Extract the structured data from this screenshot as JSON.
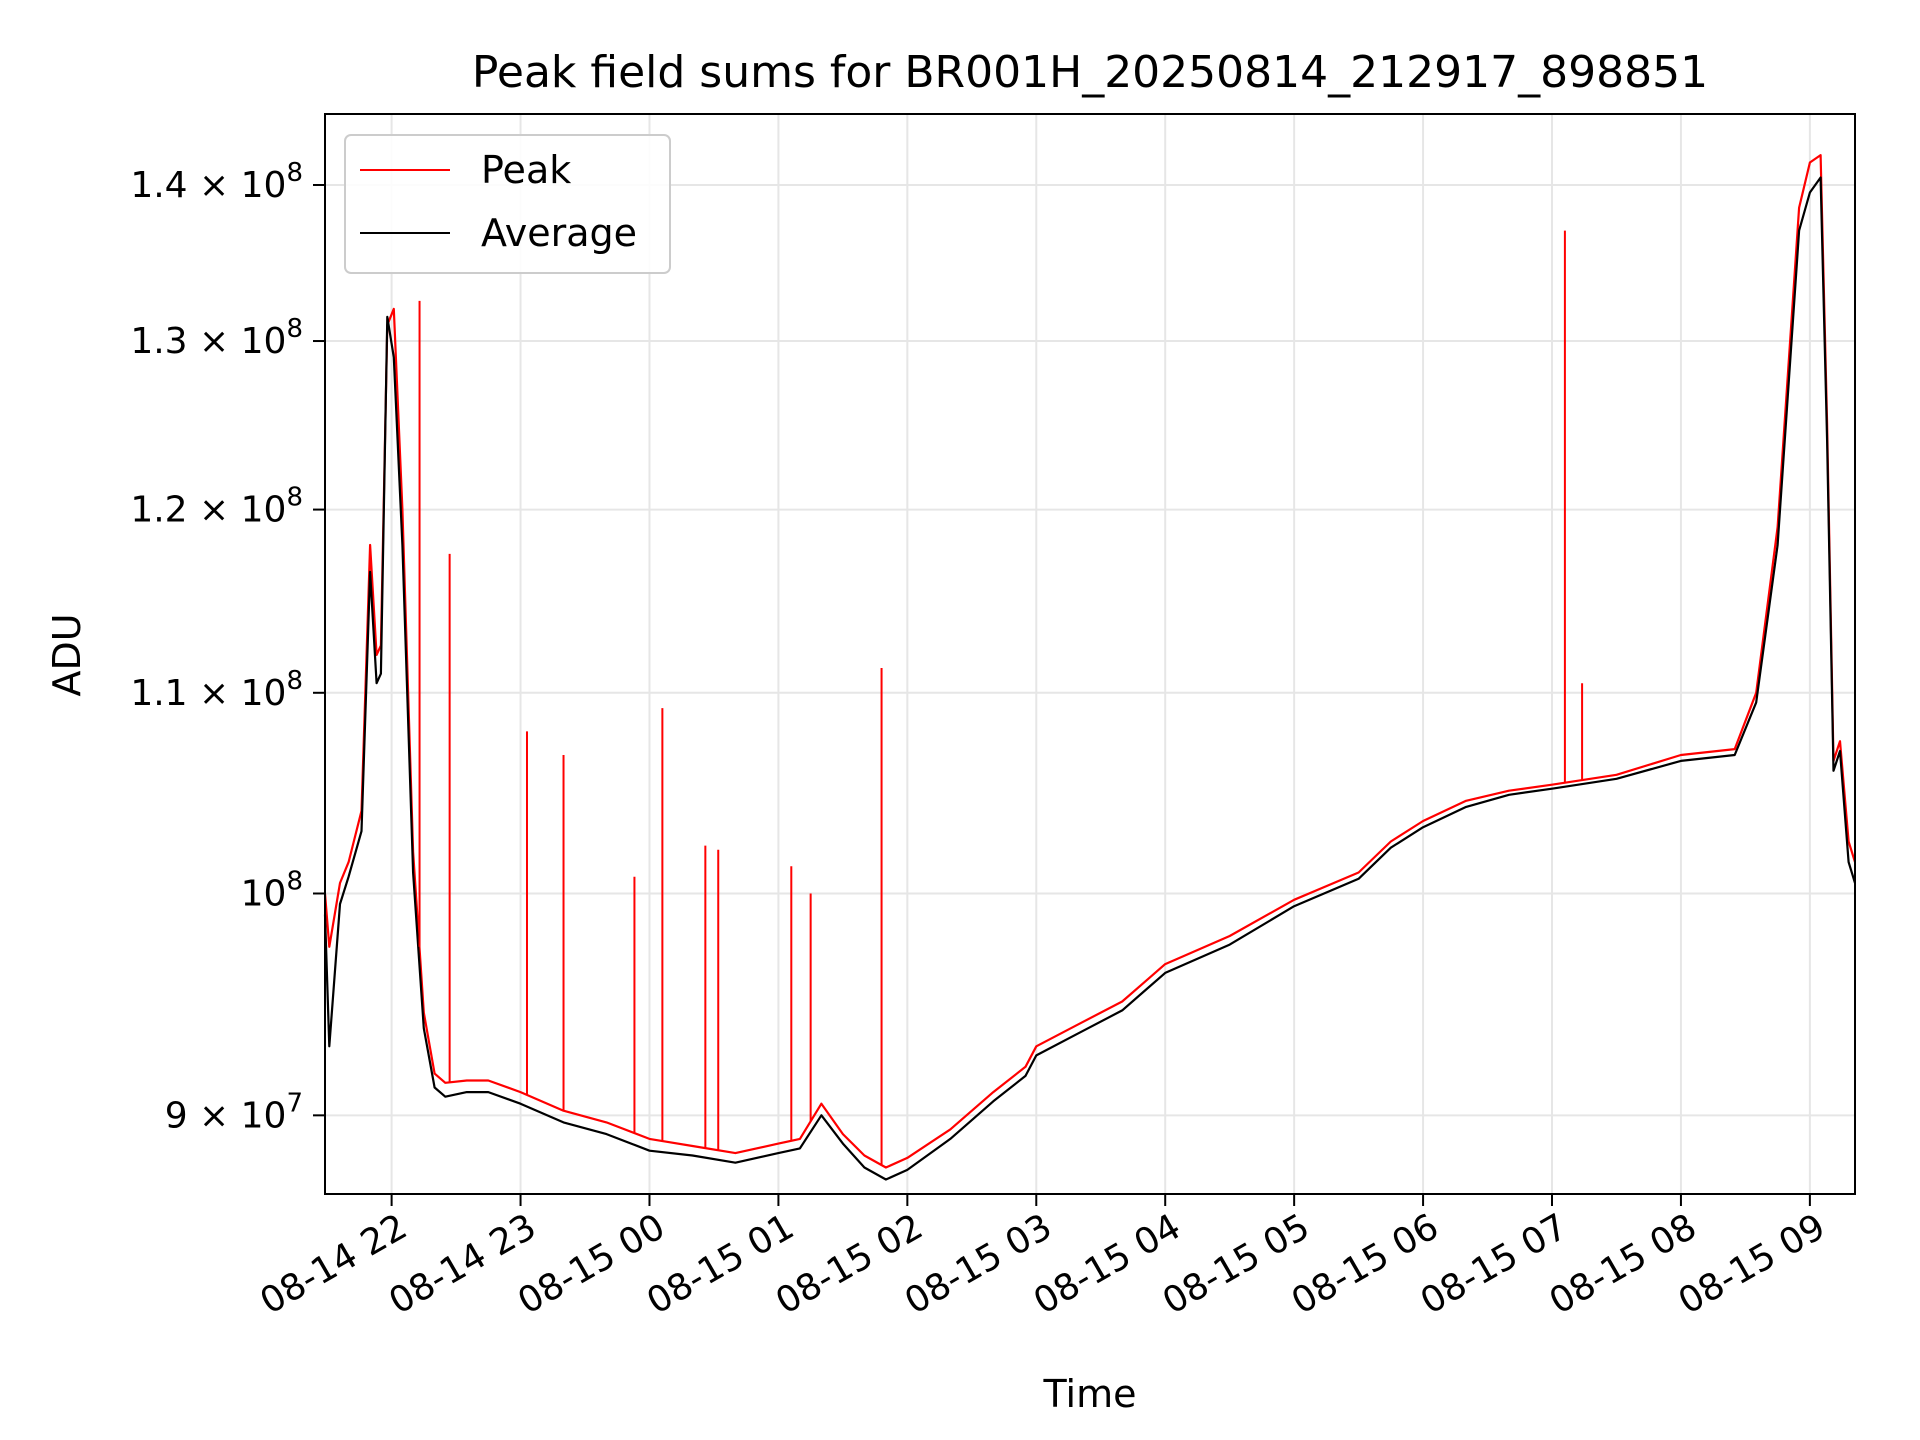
{
  "chart_data": {
    "type": "line",
    "title": "Peak field sums for BR001H_20250814_212917_898851",
    "xlabel": "Time",
    "ylabel": "ADU",
    "yscale": "log",
    "xlim": [
      "2025-08-14 21:29",
      "2025-08-15 09:21"
    ],
    "ylim": [
      86700000,
      144800000
    ],
    "grid": true,
    "legend_position": "top-left",
    "x_ticks": [
      {
        "value": "2025-08-14 22:00",
        "label": "08-14 22"
      },
      {
        "value": "2025-08-14 23:00",
        "label": "08-14 23"
      },
      {
        "value": "2025-08-15 00:00",
        "label": "08-15 00"
      },
      {
        "value": "2025-08-15 01:00",
        "label": "08-15 01"
      },
      {
        "value": "2025-08-15 02:00",
        "label": "08-15 02"
      },
      {
        "value": "2025-08-15 03:00",
        "label": "08-15 03"
      },
      {
        "value": "2025-08-15 04:00",
        "label": "08-15 04"
      },
      {
        "value": "2025-08-15 05:00",
        "label": "08-15 05"
      },
      {
        "value": "2025-08-15 06:00",
        "label": "08-15 06"
      },
      {
        "value": "2025-08-15 07:00",
        "label": "08-15 07"
      },
      {
        "value": "2025-08-15 08:00",
        "label": "08-15 08"
      },
      {
        "value": "2025-08-15 09:00",
        "label": "08-15 09"
      }
    ],
    "y_ticks": [
      {
        "value": 90000000,
        "mantissa": "9",
        "times": "×",
        "base": "10",
        "exp": "7"
      },
      {
        "value": 100000000,
        "mantissa": "",
        "times": "",
        "base": "10",
        "exp": "8"
      },
      {
        "value": 110000000,
        "mantissa": "1.1",
        "times": "×",
        "base": "10",
        "exp": "8"
      },
      {
        "value": 120000000,
        "mantissa": "1.2",
        "times": "×",
        "base": "10",
        "exp": "8"
      },
      {
        "value": 130000000,
        "mantissa": "1.3",
        "times": "×",
        "base": "10",
        "exp": "8"
      },
      {
        "value": 140000000,
        "mantissa": "1.4",
        "times": "×",
        "base": "10",
        "exp": "8"
      }
    ],
    "series": [
      {
        "name": "Peak",
        "color": "#ff0000",
        "x": [
          "2025-08-14 21:29",
          "2025-08-14 21:31",
          "2025-08-14 21:36",
          "2025-08-14 21:40",
          "2025-08-14 21:46",
          "2025-08-14 21:50",
          "2025-08-14 21:53",
          "2025-08-14 21:55",
          "2025-08-14 21:58",
          "2025-08-14 22:01",
          "2025-08-14 22:05",
          "2025-08-14 22:10",
          "2025-08-14 22:15",
          "2025-08-14 22:20",
          "2025-08-14 22:25",
          "2025-08-14 22:35",
          "2025-08-14 22:45",
          "2025-08-14 23:00",
          "2025-08-14 23:20",
          "2025-08-14 23:40",
          "2025-08-15 00:00",
          "2025-08-15 00:20",
          "2025-08-15 00:40",
          "2025-08-15 01:00",
          "2025-08-15 01:10",
          "2025-08-15 01:20",
          "2025-08-15 01:30",
          "2025-08-15 01:40",
          "2025-08-15 01:50",
          "2025-08-15 02:00",
          "2025-08-15 02:20",
          "2025-08-15 02:40",
          "2025-08-15 02:55",
          "2025-08-15 03:00",
          "2025-08-15 03:20",
          "2025-08-15 03:40",
          "2025-08-15 04:00",
          "2025-08-15 04:30",
          "2025-08-15 05:00",
          "2025-08-15 05:30",
          "2025-08-15 05:45",
          "2025-08-15 06:00",
          "2025-08-15 06:20",
          "2025-08-15 06:40",
          "2025-08-15 07:00",
          "2025-08-15 07:30",
          "2025-08-15 08:00",
          "2025-08-15 08:25",
          "2025-08-15 08:35",
          "2025-08-15 08:45",
          "2025-08-15 08:55",
          "2025-08-15 09:00",
          "2025-08-15 09:05",
          "2025-08-15 09:08",
          "2025-08-15 09:11",
          "2025-08-15 09:14",
          "2025-08-15 09:18",
          "2025-08-15 09:21"
        ],
        "values": [
          100000000,
          97500000,
          100500000,
          101500000,
          104000000,
          118000000,
          112000000,
          112500000,
          131000000,
          132000000,
          120000000,
          102000000,
          94500000,
          91800000,
          91400000,
          91500000,
          91500000,
          91000000,
          90200000,
          89700000,
          89000000,
          88700000,
          88400000,
          88800000,
          89000000,
          90500000,
          89200000,
          88300000,
          87800000,
          88200000,
          89400000,
          91000000,
          92100000,
          93000000,
          94000000,
          95000000,
          96700000,
          98000000,
          99700000,
          101000000,
          102500000,
          103500000,
          104500000,
          105000000,
          105300000,
          105800000,
          106800000,
          107100000,
          110000000,
          119000000,
          138500000,
          141500000,
          142000000,
          125000000,
          106500000,
          107500000,
          102500000,
          101500000
        ]
      },
      {
        "name": "Average",
        "color": "#000000",
        "x": [
          "2025-08-14 21:29",
          "2025-08-14 21:31",
          "2025-08-14 21:36",
          "2025-08-14 21:40",
          "2025-08-14 21:46",
          "2025-08-14 21:50",
          "2025-08-14 21:53",
          "2025-08-14 21:55",
          "2025-08-14 21:58",
          "2025-08-14 22:01",
          "2025-08-14 22:05",
          "2025-08-14 22:10",
          "2025-08-14 22:15",
          "2025-08-14 22:20",
          "2025-08-14 22:25",
          "2025-08-14 22:35",
          "2025-08-14 22:45",
          "2025-08-14 23:00",
          "2025-08-14 23:20",
          "2025-08-14 23:40",
          "2025-08-15 00:00",
          "2025-08-15 00:20",
          "2025-08-15 00:40",
          "2025-08-15 01:00",
          "2025-08-15 01:10",
          "2025-08-15 01:20",
          "2025-08-15 01:30",
          "2025-08-15 01:40",
          "2025-08-15 01:50",
          "2025-08-15 02:00",
          "2025-08-15 02:20",
          "2025-08-15 02:40",
          "2025-08-15 02:55",
          "2025-08-15 03:00",
          "2025-08-15 03:20",
          "2025-08-15 03:40",
          "2025-08-15 04:00",
          "2025-08-15 04:30",
          "2025-08-15 05:00",
          "2025-08-15 05:30",
          "2025-08-15 05:45",
          "2025-08-15 06:00",
          "2025-08-15 06:20",
          "2025-08-15 06:40",
          "2025-08-15 07:00",
          "2025-08-15 07:30",
          "2025-08-15 08:00",
          "2025-08-15 08:25",
          "2025-08-15 08:35",
          "2025-08-15 08:45",
          "2025-08-15 08:55",
          "2025-08-15 09:00",
          "2025-08-15 09:05",
          "2025-08-15 09:08",
          "2025-08-15 09:11",
          "2025-08-15 09:14",
          "2025-08-15 09:18",
          "2025-08-15 09:21"
        ],
        "values": [
          99000000,
          93000000,
          99500000,
          100800000,
          103000000,
          116500000,
          110500000,
          111000000,
          131500000,
          129000000,
          118000000,
          101000000,
          93800000,
          91200000,
          90800000,
          91000000,
          91000000,
          90500000,
          89700000,
          89200000,
          88500000,
          88300000,
          88000000,
          88400000,
          88600000,
          90000000,
          88800000,
          87800000,
          87300000,
          87700000,
          89000000,
          90600000,
          91700000,
          92600000,
          93600000,
          94600000,
          96300000,
          97600000,
          99400000,
          100700000,
          102200000,
          103200000,
          104200000,
          104800000,
          105100000,
          105600000,
          106500000,
          106800000,
          109500000,
          118000000,
          137000000,
          139500000,
          140500000,
          124000000,
          106000000,
          107000000,
          101500000,
          100500000
        ]
      }
    ],
    "spikes": [
      {
        "series": "Peak",
        "x": "2025-08-14 22:13",
        "value": 132500000
      },
      {
        "series": "Peak",
        "x": "2025-08-14 22:27",
        "value": 117500000
      },
      {
        "series": "Peak",
        "x": "2025-08-14 23:03",
        "value": 108000000
      },
      {
        "series": "Peak",
        "x": "2025-08-14 23:20",
        "value": 106800000
      },
      {
        "series": "Peak",
        "x": "2025-08-14 23:53",
        "value": 100800000
      },
      {
        "series": "Peak",
        "x": "2025-08-15 00:06",
        "value": 109200000
      },
      {
        "series": "Peak",
        "x": "2025-08-15 00:26",
        "value": 102300000
      },
      {
        "series": "Peak",
        "x": "2025-08-15 00:32",
        "value": 102100000
      },
      {
        "series": "Peak",
        "x": "2025-08-15 01:06",
        "value": 101300000
      },
      {
        "series": "Peak",
        "x": "2025-08-15 01:15",
        "value": 100000000
      },
      {
        "series": "Peak",
        "x": "2025-08-15 01:48",
        "value": 111300000
      },
      {
        "series": "Peak",
        "x": "2025-08-15 07:06",
        "value": 137000000
      },
      {
        "series": "Peak",
        "x": "2025-08-15 07:14",
        "value": 110500000
      }
    ],
    "legend": [
      {
        "name": "Peak",
        "color": "#ff0000"
      },
      {
        "name": "Average",
        "color": "#000000"
      }
    ]
  }
}
